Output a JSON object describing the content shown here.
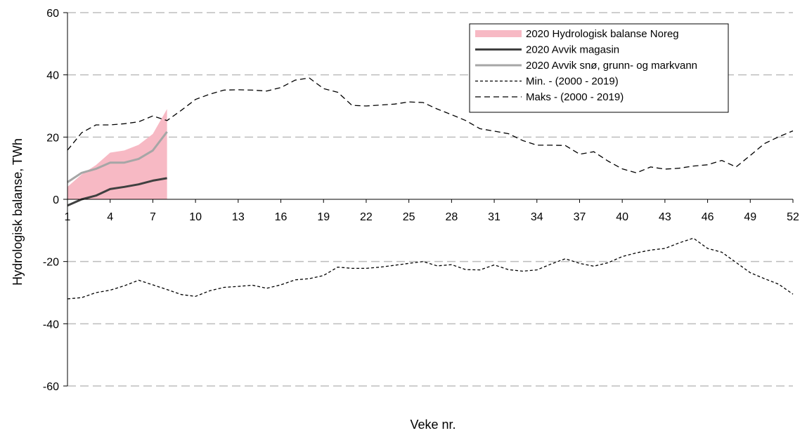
{
  "chart_data": {
    "type": "line",
    "title": "",
    "xlabel": "Veke nr.",
    "ylabel": "Hydrologisk balanse, TWh",
    "xlim": [
      1,
      52
    ],
    "ylim": [
      -60,
      60
    ],
    "x_ticks": [
      1,
      4,
      7,
      10,
      13,
      16,
      19,
      22,
      25,
      28,
      31,
      34,
      37,
      40,
      43,
      46,
      49,
      52
    ],
    "y_ticks": [
      -60,
      -40,
      -20,
      0,
      20,
      40,
      60
    ],
    "grid": "horizontal dashed",
    "legend_position": "top-right",
    "series": [
      {
        "name": "2020 Hydrologisk balanse Noreg",
        "kind": "area",
        "color": "#f7b9c4",
        "x": [
          1,
          2,
          3,
          4,
          5,
          6,
          7,
          8
        ],
        "values": [
          4,
          8,
          11,
          15,
          15.7,
          17.5,
          21,
          29
        ]
      },
      {
        "name": "2020 Avvik magasin",
        "kind": "line",
        "color": "#404040",
        "x": [
          1,
          2,
          3,
          4,
          5,
          6,
          7,
          8
        ],
        "values": [
          -2,
          0,
          1.2,
          3.3,
          4,
          4.8,
          6,
          6.8
        ]
      },
      {
        "name": "2020 Avvik snø, grunn- og markvann",
        "kind": "line",
        "color": "#a6a6a6",
        "x": [
          1,
          2,
          3,
          4,
          5,
          6,
          7,
          8
        ],
        "values": [
          5.5,
          8.5,
          9.8,
          11.8,
          11.8,
          13,
          15.7,
          21.7
        ]
      },
      {
        "name": "Min. - (2000 - 2019)",
        "kind": "line",
        "color": "#000000",
        "dash": "short",
        "x": [
          1,
          2,
          3,
          4,
          5,
          6,
          7,
          8,
          9,
          10,
          11,
          12,
          13,
          14,
          15,
          16,
          17,
          18,
          19,
          20,
          21,
          22,
          23,
          24,
          25,
          26,
          27,
          28,
          29,
          30,
          31,
          32,
          33,
          34,
          35,
          36,
          37,
          38,
          39,
          40,
          41,
          42,
          43,
          44,
          45,
          46,
          47,
          48,
          49,
          50,
          51,
          52
        ],
        "values": [
          -32,
          -31.6,
          -30,
          -29.2,
          -27.8,
          -26,
          -27.5,
          -29,
          -30.6,
          -31.2,
          -29.4,
          -28.3,
          -28,
          -27.6,
          -28.6,
          -27.5,
          -25.9,
          -25.5,
          -24.5,
          -21.8,
          -22.2,
          -22.2,
          -21.8,
          -21.2,
          -20.6,
          -20,
          -21.4,
          -21,
          -22.6,
          -22.7,
          -21.1,
          -22.6,
          -23.1,
          -22.7,
          -20.8,
          -19.1,
          -20.6,
          -21.5,
          -20.4,
          -18.4,
          -17.2,
          -16.3,
          -15.8,
          -14,
          -12.5,
          -15.8,
          -17,
          -20.3,
          -23.6,
          -25.5,
          -27.3,
          -30.5
        ]
      },
      {
        "name": "Maks - (2000 - 2019)",
        "kind": "line",
        "color": "#000000",
        "dash": "long",
        "x": [
          1,
          2,
          3,
          4,
          5,
          6,
          7,
          8,
          9,
          10,
          11,
          12,
          13,
          14,
          15,
          16,
          17,
          18,
          19,
          20,
          21,
          22,
          23,
          24,
          25,
          26,
          27,
          28,
          29,
          30,
          31,
          32,
          33,
          34,
          35,
          36,
          37,
          38,
          39,
          40,
          41,
          42,
          43,
          44,
          45,
          46,
          47,
          48,
          49,
          50,
          51,
          52
        ],
        "values": [
          15.8,
          21.4,
          23.9,
          23.9,
          24.3,
          24.9,
          26.8,
          25.3,
          28.6,
          32.1,
          33.8,
          35.1,
          35.2,
          35.1,
          34.8,
          35.9,
          38.3,
          39,
          35.6,
          34.4,
          30.2,
          30,
          30.3,
          30.6,
          31.3,
          31.1,
          29,
          27.2,
          25.3,
          22.7,
          21.9,
          21.1,
          18.9,
          17.4,
          17.4,
          17.3,
          14.5,
          15.3,
          12.3,
          9.8,
          8.5,
          10.4,
          9.7,
          10,
          10.7,
          11.1,
          12.5,
          10.4,
          14.1,
          17.9,
          20.1,
          22
        ]
      }
    ]
  }
}
